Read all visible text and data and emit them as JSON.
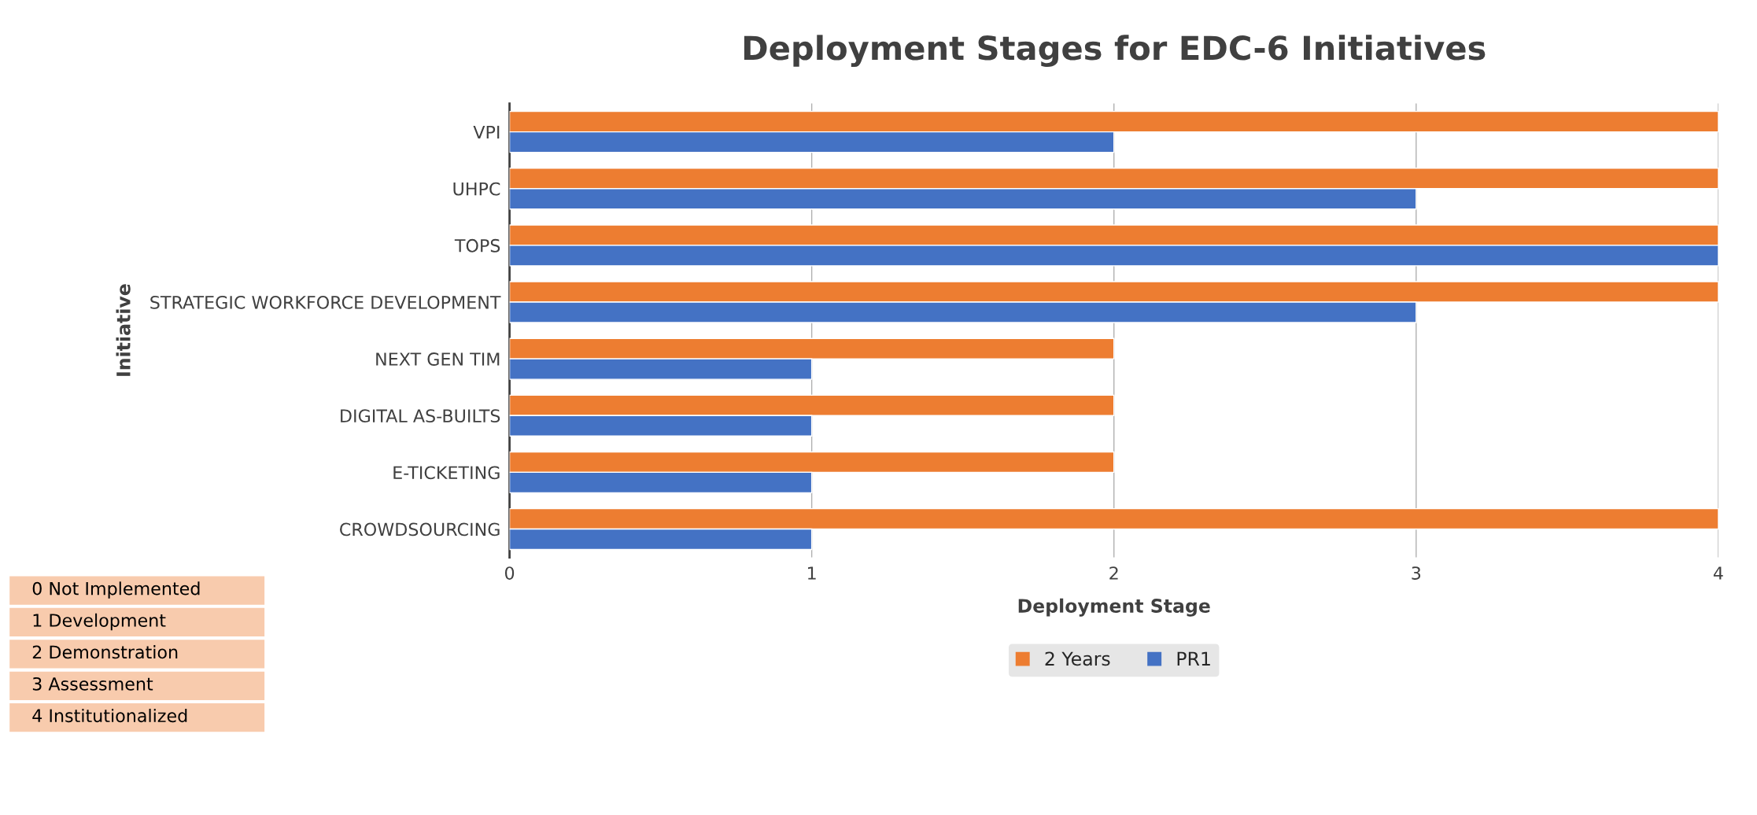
{
  "chart_data": {
    "type": "bar",
    "orientation": "horizontal",
    "title": "Deployment Stages for EDC-6 Initiatives",
    "xlabel": "Deployment Stage",
    "ylabel": "Initiative",
    "categories": [
      "VPI",
      "UHPC",
      "TOPS",
      "STRATEGIC WORKFORCE DEVELOPMENT",
      "NEXT GEN TIM",
      "DIGITAL AS-BUILTS",
      "E-TICKETING",
      "CROWDSOURCING"
    ],
    "series": [
      {
        "name": "2 Years",
        "color": "#ed7d31",
        "values": [
          4,
          4,
          4,
          4,
          2,
          2,
          2,
          4
        ]
      },
      {
        "name": "PR1",
        "color": "#4472c4",
        "values": [
          2,
          3,
          4,
          3,
          1,
          1,
          1,
          1
        ]
      }
    ],
    "xlim": [
      0,
      4
    ],
    "xticks": [
      0,
      1,
      2,
      3,
      4
    ],
    "grid": "x",
    "legend": "bottom",
    "annotations": [
      "0 Not Implemented",
      "1 Development",
      "2 Demonstration",
      "3 Assessment",
      "4 Institutionalized"
    ]
  }
}
